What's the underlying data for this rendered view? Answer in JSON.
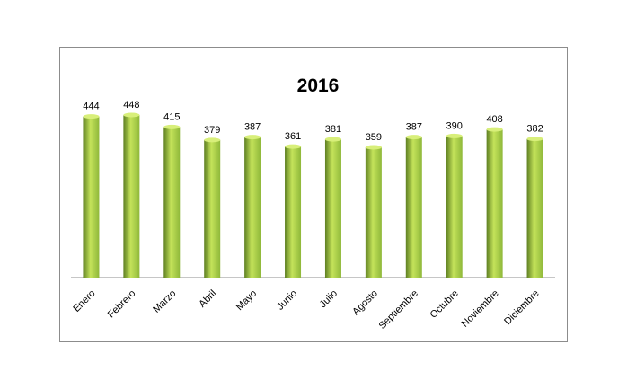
{
  "chart_data": {
    "type": "bar",
    "title": "2016",
    "xlabel": "",
    "ylabel": "",
    "categories": [
      "Enero",
      "Febrero",
      "Marzo",
      "Abril",
      "Mayo",
      "Junio",
      "Julio",
      "Agosto",
      "Septiembre",
      "Octubre",
      "Noviembre",
      "Diciembre"
    ],
    "values": [
      444,
      448,
      415,
      379,
      387,
      361,
      381,
      359,
      387,
      390,
      408,
      382
    ],
    "ylim": [
      0,
      448
    ],
    "grid": false,
    "legend": "none",
    "colors": {
      "bar_light": "#c4e35a",
      "bar_mid": "#8fb83a",
      "bar_dark": "#5e7f22",
      "bar_top": "#d8ef7a",
      "axis": "#8c8c8c"
    }
  }
}
